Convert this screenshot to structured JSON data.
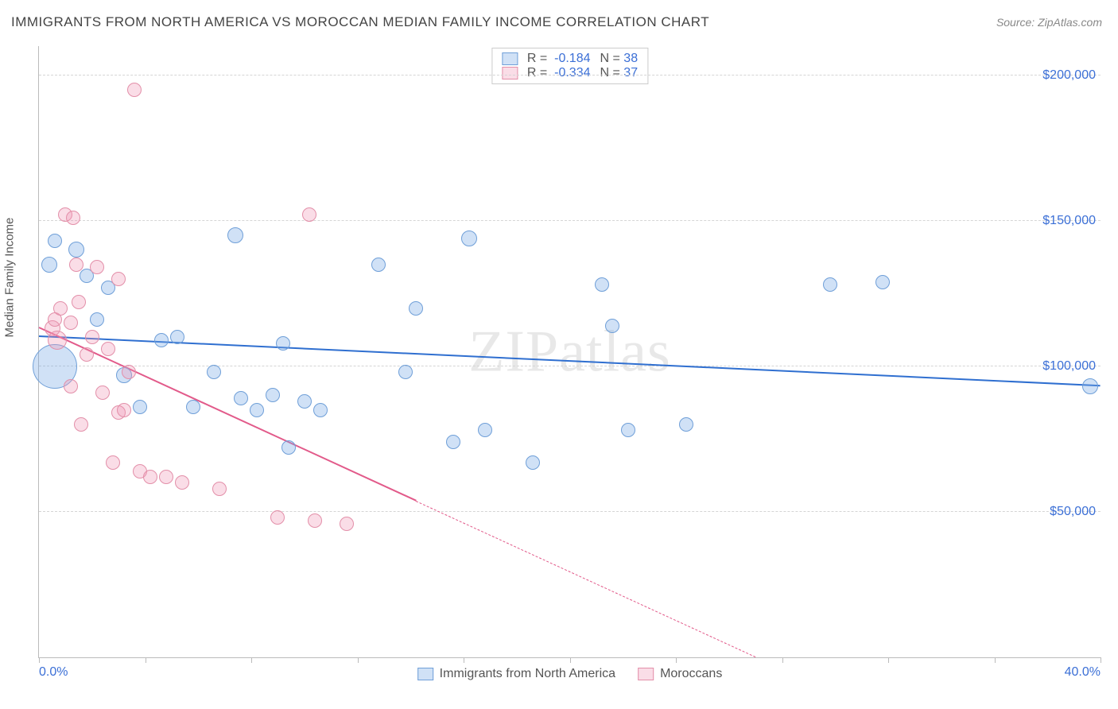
{
  "title": "IMMIGRANTS FROM NORTH AMERICA VS MOROCCAN MEDIAN FAMILY INCOME CORRELATION CHART",
  "source": "Source: ZipAtlas.com",
  "watermark": "ZIPatlas",
  "ylabel": "Median Family Income",
  "chart": {
    "type": "scatter",
    "background_color": "#ffffff",
    "grid_color": "#d5d5d5",
    "axis_color": "#bbbbbb",
    "label_color": "#3b6fd6",
    "xlim": [
      0,
      40
    ],
    "ylim": [
      0,
      210000
    ],
    "xticks": [
      0,
      4,
      8,
      12,
      16,
      20,
      24,
      28,
      32,
      36,
      40
    ],
    "yticks": [
      50000,
      100000,
      150000,
      200000
    ],
    "ytick_labels": [
      "$50,000",
      "$100,000",
      "$150,000",
      "$200,000"
    ],
    "xlabel_min": "0.0%",
    "xlabel_max": "40.0%",
    "series": [
      {
        "name": "Immigrants from North America",
        "color_fill": "rgba(120,170,230,0.35)",
        "color_stroke": "#6f9fd8",
        "trend_color": "#2f6fd0",
        "trend": {
          "x1": 0,
          "y1": 110000,
          "x2": 40,
          "y2": 93000,
          "solid_until_x": 40
        },
        "r": -0.184,
        "n": 38,
        "points": [
          {
            "x": 0.4,
            "y": 135000,
            "r": 10
          },
          {
            "x": 0.6,
            "y": 100000,
            "r": 28
          },
          {
            "x": 0.6,
            "y": 143000,
            "r": 9
          },
          {
            "x": 1.4,
            "y": 140000,
            "r": 10
          },
          {
            "x": 1.8,
            "y": 131000,
            "r": 9
          },
          {
            "x": 2.2,
            "y": 116000,
            "r": 9
          },
          {
            "x": 2.6,
            "y": 127000,
            "r": 9
          },
          {
            "x": 3.2,
            "y": 97000,
            "r": 10
          },
          {
            "x": 3.8,
            "y": 86000,
            "r": 9
          },
          {
            "x": 4.6,
            "y": 109000,
            "r": 9
          },
          {
            "x": 5.2,
            "y": 110000,
            "r": 9
          },
          {
            "x": 5.8,
            "y": 86000,
            "r": 9
          },
          {
            "x": 6.6,
            "y": 98000,
            "r": 9
          },
          {
            "x": 7.4,
            "y": 145000,
            "r": 10
          },
          {
            "x": 7.6,
            "y": 89000,
            "r": 9
          },
          {
            "x": 8.2,
            "y": 85000,
            "r": 9
          },
          {
            "x": 8.8,
            "y": 90000,
            "r": 9
          },
          {
            "x": 9.2,
            "y": 108000,
            "r": 9
          },
          {
            "x": 9.4,
            "y": 72000,
            "r": 9
          },
          {
            "x": 10.0,
            "y": 88000,
            "r": 9
          },
          {
            "x": 10.6,
            "y": 85000,
            "r": 9
          },
          {
            "x": 12.8,
            "y": 135000,
            "r": 9
          },
          {
            "x": 13.8,
            "y": 98000,
            "r": 9
          },
          {
            "x": 14.2,
            "y": 120000,
            "r": 9
          },
          {
            "x": 15.6,
            "y": 74000,
            "r": 9
          },
          {
            "x": 16.2,
            "y": 144000,
            "r": 10
          },
          {
            "x": 16.8,
            "y": 78000,
            "r": 9
          },
          {
            "x": 18.6,
            "y": 67000,
            "r": 9
          },
          {
            "x": 21.2,
            "y": 128000,
            "r": 9
          },
          {
            "x": 21.6,
            "y": 114000,
            "r": 9
          },
          {
            "x": 22.2,
            "y": 78000,
            "r": 9
          },
          {
            "x": 24.4,
            "y": 80000,
            "r": 9
          },
          {
            "x": 29.8,
            "y": 128000,
            "r": 9
          },
          {
            "x": 31.8,
            "y": 129000,
            "r": 9
          },
          {
            "x": 39.6,
            "y": 93000,
            "r": 10
          }
        ]
      },
      {
        "name": "Moroccans",
        "color_fill": "rgba(240,150,180,0.32)",
        "color_stroke": "#e38fa9",
        "trend_color": "#e25a8a",
        "trend": {
          "x1": 0,
          "y1": 113000,
          "x2": 27,
          "y2": 0,
          "solid_until_x": 14.2
        },
        "r": -0.334,
        "n": 37,
        "points": [
          {
            "x": 0.5,
            "y": 113000,
            "r": 10
          },
          {
            "x": 0.6,
            "y": 116000,
            "r": 9
          },
          {
            "x": 0.7,
            "y": 109000,
            "r": 12
          },
          {
            "x": 0.8,
            "y": 120000,
            "r": 9
          },
          {
            "x": 1.0,
            "y": 152000,
            "r": 9
          },
          {
            "x": 1.2,
            "y": 115000,
            "r": 9
          },
          {
            "x": 1.2,
            "y": 93000,
            "r": 9
          },
          {
            "x": 1.3,
            "y": 151000,
            "r": 9
          },
          {
            "x": 1.4,
            "y": 135000,
            "r": 9
          },
          {
            "x": 1.5,
            "y": 122000,
            "r": 9
          },
          {
            "x": 1.6,
            "y": 80000,
            "r": 9
          },
          {
            "x": 1.8,
            "y": 104000,
            "r": 9
          },
          {
            "x": 2.0,
            "y": 110000,
            "r": 9
          },
          {
            "x": 2.2,
            "y": 134000,
            "r": 9
          },
          {
            "x": 2.4,
            "y": 91000,
            "r": 9
          },
          {
            "x": 2.6,
            "y": 106000,
            "r": 9
          },
          {
            "x": 2.8,
            "y": 67000,
            "r": 9
          },
          {
            "x": 3.0,
            "y": 130000,
            "r": 9
          },
          {
            "x": 3.0,
            "y": 84000,
            "r": 9
          },
          {
            "x": 3.2,
            "y": 85000,
            "r": 9
          },
          {
            "x": 3.4,
            "y": 98000,
            "r": 9
          },
          {
            "x": 3.6,
            "y": 195000,
            "r": 9
          },
          {
            "x": 3.8,
            "y": 64000,
            "r": 9
          },
          {
            "x": 4.2,
            "y": 62000,
            "r": 9
          },
          {
            "x": 4.8,
            "y": 62000,
            "r": 9
          },
          {
            "x": 5.4,
            "y": 60000,
            "r": 9
          },
          {
            "x": 6.8,
            "y": 58000,
            "r": 9
          },
          {
            "x": 9.0,
            "y": 48000,
            "r": 9
          },
          {
            "x": 10.2,
            "y": 152000,
            "r": 9
          },
          {
            "x": 10.4,
            "y": 47000,
            "r": 9
          },
          {
            "x": 11.6,
            "y": 46000,
            "r": 9
          }
        ]
      }
    ]
  },
  "legend_top": {
    "r_label": "R =",
    "n_label": "N ="
  },
  "legend_bottom": [
    "Immigrants from North America",
    "Moroccans"
  ]
}
